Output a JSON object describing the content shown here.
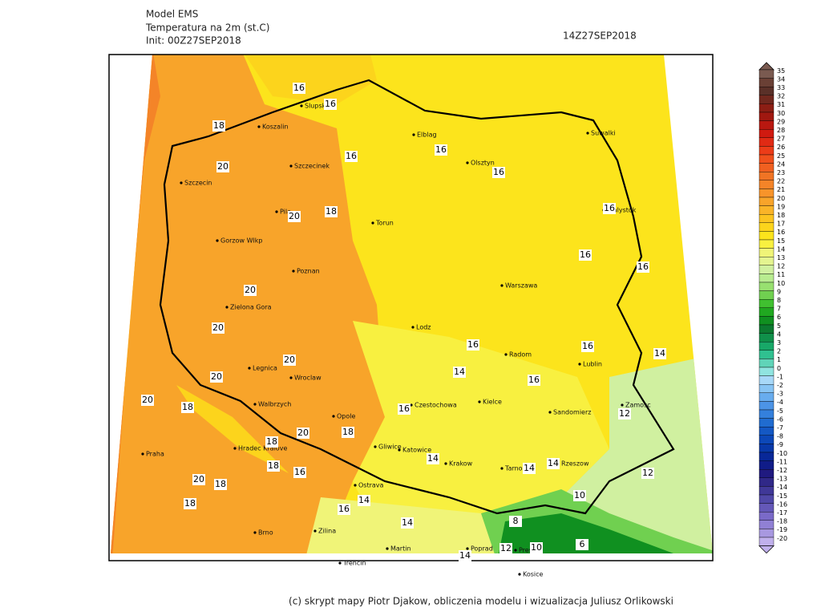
{
  "header": {
    "model": "Model EMS",
    "variable": "Temperatura na 2m (st.C)",
    "init": "Init: 00Z27SEP2018",
    "valid": "14Z27SEP2018"
  },
  "colorbar": {
    "labels": [
      35,
      34,
      33,
      32,
      31,
      30,
      29,
      28,
      27,
      26,
      25,
      24,
      23,
      22,
      21,
      20,
      19,
      18,
      17,
      16,
      15,
      14,
      13,
      12,
      11,
      10,
      9,
      8,
      7,
      6,
      5,
      4,
      3,
      2,
      1,
      0,
      -1,
      -2,
      -3,
      -4,
      -5,
      -6,
      -7,
      -8,
      -9,
      -10,
      -11,
      -12,
      -13,
      -14,
      -15,
      -16,
      -17,
      -18,
      -19,
      -20
    ],
    "colors": [
      "#7a5a50",
      "#6a4035",
      "#5a3028",
      "#70281e",
      "#8c1e14",
      "#a01810",
      "#b81810",
      "#d01a10",
      "#e02a14",
      "#ec3c18",
      "#f0501c",
      "#f06020",
      "#f07424",
      "#f48428",
      "#f8942a",
      "#f8a42a",
      "#fab428",
      "#fcc420",
      "#fcd41c",
      "#fce41c",
      "#f8f040",
      "#f0f478",
      "#e4f490",
      "#d0f0a0",
      "#b8ec90",
      "#98e070",
      "#70d050",
      "#40c030",
      "#20a820",
      "#109020",
      "#0c7a30",
      "#10904a",
      "#18a868",
      "#30c090",
      "#60d4b8",
      "#90e4e0",
      "#a8d8f8",
      "#88c4f4",
      "#68acee",
      "#4c94e6",
      "#3480dc",
      "#206cd0",
      "#1458c4",
      "#0c48b8",
      "#0838a8",
      "#082898",
      "#101c88",
      "#201a80",
      "#302888",
      "#403898",
      "#5048a8",
      "#6458b8",
      "#7a6ac8",
      "#9080d4",
      "#a898e0",
      "#c0b0ec"
    ]
  },
  "cities": [
    "Koszalin",
    "Slupsk",
    "Elblag",
    "Olsztyn",
    "Suwalki",
    "Szczecinek",
    "Szczecin",
    "Pila",
    "Torun",
    "Bialystok",
    "Gorzow Wlkp",
    "Poznan",
    "Warszawa",
    "Zielona Gora",
    "Lodz",
    "Radom",
    "Lublin",
    "Legnica",
    "Wroclaw",
    "Kielce",
    "Walbrzych",
    "Opole",
    "Czestochowa",
    "Sandomierz",
    "Zamosc",
    "Hradec Kralove",
    "Gliwice",
    "Katowice",
    "Krakow",
    "Tarnow",
    "Rzeszow",
    "Praha",
    "Ostrava",
    "Brno",
    "Zilina",
    "Martin",
    "Poprad",
    "Presov",
    "Trencin",
    "Kosice"
  ],
  "contour_labels": [
    16,
    16,
    18,
    16,
    16,
    16,
    20,
    18,
    20,
    16,
    16,
    16,
    20,
    20,
    16,
    16,
    14,
    20,
    14,
    16,
    20,
    20,
    18,
    16,
    12,
    18,
    20,
    18,
    14,
    18,
    14,
    16,
    14,
    12,
    20,
    18,
    18,
    14,
    16,
    10,
    8,
    14,
    12,
    10,
    6,
    14
  ],
  "footer": "(c) skrypt mapy Piotr Djakow, obliczenia modelu i wizualizacja Juliusz Orlikowski"
}
